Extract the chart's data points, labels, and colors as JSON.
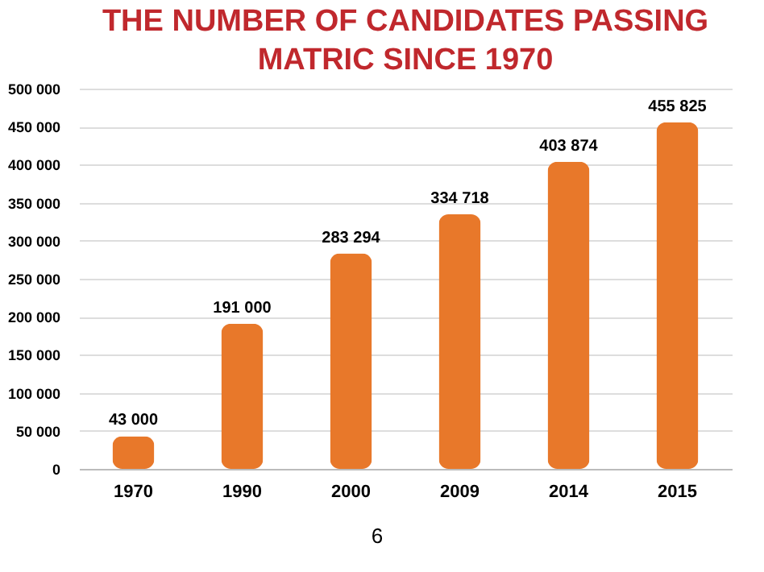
{
  "chart_data": {
    "type": "bar",
    "title": "THE NUMBER OF CANDIDATES PASSING MATRIC SINCE 1970",
    "categories": [
      "1970",
      "1990",
      "2000",
      "2009",
      "2014",
      "2015"
    ],
    "series": [
      {
        "color": "#e8782a",
        "values": [
          43000,
          191000,
          283294,
          334718,
          403874,
          455825
        ]
      }
    ],
    "value_labels": [
      "43 000",
      "191 000",
      "283 294",
      "334 718",
      "403 874",
      "455 825"
    ],
    "ylim": [
      0,
      500000
    ],
    "yticks": [
      {
        "value": 0,
        "label": "0"
      },
      {
        "value": 50000,
        "label": "50 000"
      },
      {
        "value": 100000,
        "label": "100 000"
      },
      {
        "value": 150000,
        "label": "150 000"
      },
      {
        "value": 200000,
        "label": "200 000"
      },
      {
        "value": 250000,
        "label": "250 000"
      },
      {
        "value": 300000,
        "label": "300 000"
      },
      {
        "value": 350000,
        "label": "350 000"
      },
      {
        "value": 400000,
        "label": "400 000"
      },
      {
        "value": 450000,
        "label": "450 000"
      },
      {
        "value": 500000,
        "label": "500 000"
      }
    ],
    "grid": "y",
    "annotations": [
      "6"
    ]
  }
}
